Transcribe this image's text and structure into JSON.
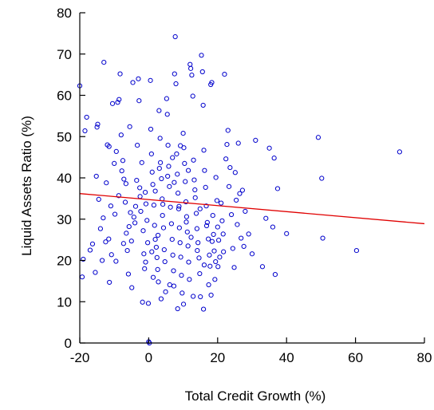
{
  "chart_data": {
    "type": "scatter",
    "title": "",
    "xlabel": "Total Credit Growth (%)",
    "ylabel": "Liquid Assets Ratio (%)",
    "xlim": [
      -20,
      80
    ],
    "ylim": [
      0,
      80
    ],
    "xticks": [
      "-20",
      "0",
      "20",
      "40",
      "60",
      "80"
    ],
    "yticks": [
      "0",
      "10",
      "20",
      "30",
      "40",
      "50",
      "60",
      "70",
      "80"
    ],
    "grid": false,
    "marker_color": "#0000cc",
    "fit_line_color": "#e00000",
    "fit_line": {
      "x": [
        -20,
        80
      ],
      "y": [
        36.2,
        28.9
      ]
    },
    "points": [
      [
        -20,
        62.3
      ],
      [
        -19,
        20.3
      ],
      [
        -19.3,
        16
      ],
      [
        -18.5,
        51.4
      ],
      [
        -18,
        54.7
      ],
      [
        -17,
        22.5
      ],
      [
        -16.3,
        24
      ],
      [
        -15.5,
        17.1
      ],
      [
        -15.2,
        40.4
      ],
      [
        -15,
        52.3
      ],
      [
        -14.8,
        53
      ],
      [
        -14.5,
        34.8
      ],
      [
        -14,
        27.7
      ],
      [
        -13.5,
        20
      ],
      [
        -13.2,
        30.3
      ],
      [
        -13,
        68
      ],
      [
        -12.5,
        24.5
      ],
      [
        -12.3,
        38.8
      ],
      [
        -12,
        48
      ],
      [
        -11.5,
        47.6
      ],
      [
        -11.6,
        25.2
      ],
      [
        -11,
        33.2
      ],
      [
        -11.4,
        14.7
      ],
      [
        -10.8,
        21.4
      ],
      [
        -10.5,
        58
      ],
      [
        -10,
        43.5
      ],
      [
        -9.5,
        19.8
      ],
      [
        -9.4,
        46.4
      ],
      [
        -9,
        58.3
      ],
      [
        -8.6,
        59
      ],
      [
        -8.3,
        65.2
      ],
      [
        -8,
        50.4
      ],
      [
        -7.8,
        41.7
      ],
      [
        -7.5,
        44.2
      ],
      [
        -7.2,
        39.7
      ],
      [
        -6.6,
        38.6
      ],
      [
        -6.8,
        34.1
      ],
      [
        -6.5,
        26.6
      ],
      [
        -6.2,
        22.4
      ],
      [
        -5.9,
        16.7
      ],
      [
        -5.5,
        52.4
      ],
      [
        -5.3,
        31.6
      ],
      [
        -5,
        24.7
      ],
      [
        -4.6,
        63.1
      ],
      [
        -4.3,
        30.5
      ],
      [
        -4,
        29.1
      ],
      [
        -3.5,
        39.4
      ],
      [
        -3.3,
        47.9
      ],
      [
        -3,
        64
      ],
      [
        -2.8,
        58.7
      ],
      [
        -2.5,
        35.5
      ],
      [
        -2.3,
        31.9
      ],
      [
        -2,
        43.7
      ],
      [
        -1.6,
        27.2
      ],
      [
        -1.4,
        21.6
      ],
      [
        -1.2,
        18
      ],
      [
        -1,
        36.5
      ],
      [
        -0.8,
        33.7
      ],
      [
        -0.5,
        29.7
      ],
      [
        -0.3,
        24.3
      ],
      [
        -0.1,
        9.6
      ],
      [
        0,
        0.3
      ],
      [
        0.2,
        0
      ],
      [
        0.5,
        63.6
      ],
      [
        0.6,
        51.8
      ],
      [
        0.8,
        45.8
      ],
      [
        1,
        41.4
      ],
      [
        1.2,
        38.4
      ],
      [
        1.5,
        33.4
      ],
      [
        1.7,
        28.5
      ],
      [
        1.9,
        25.1
      ],
      [
        2.2,
        23.2
      ],
      [
        2.4,
        20.7
      ],
      [
        2.6,
        17.8
      ],
      [
        2.8,
        14.8
      ],
      [
        3,
        56.3
      ],
      [
        3.3,
        49.6
      ],
      [
        3.4,
        43.7
      ],
      [
        3.7,
        39.8
      ],
      [
        3.9,
        34.9
      ],
      [
        4,
        30.9
      ],
      [
        4.3,
        27.9
      ],
      [
        4.5,
        22.6
      ],
      [
        4.7,
        19.7
      ],
      [
        4.9,
        12.4
      ],
      [
        5.2,
        59.2
      ],
      [
        5.4,
        55.4
      ],
      [
        5.6,
        47.9
      ],
      [
        5.8,
        42.8
      ],
      [
        6,
        37.9
      ],
      [
        6.3,
        32.9
      ],
      [
        6.6,
        28.9
      ],
      [
        6.8,
        25.1
      ],
      [
        7,
        21.3
      ],
      [
        7.2,
        17.5
      ],
      [
        7.3,
        13.8
      ],
      [
        7.5,
        65.2
      ],
      [
        7.7,
        74.2
      ],
      [
        7.9,
        62.8
      ],
      [
        8.1,
        45.8
      ],
      [
        8.3,
        40.9
      ],
      [
        8.5,
        36.3
      ],
      [
        8.7,
        32.5
      ],
      [
        8.9,
        27.9
      ],
      [
        9.1,
        24.3
      ],
      [
        9.3,
        20.8
      ],
      [
        9.5,
        16.4
      ],
      [
        9.7,
        12.1
      ],
      [
        10,
        50.8
      ],
      [
        10.2,
        47.3
      ],
      [
        10.4,
        43.5
      ],
      [
        10.6,
        39.1
      ],
      [
        10.8,
        34.2
      ],
      [
        11,
        30.6
      ],
      [
        11.2,
        26.9
      ],
      [
        11.4,
        23.5
      ],
      [
        11.6,
        19.6
      ],
      [
        11.8,
        15.4
      ],
      [
        12,
        67.5
      ],
      [
        12.2,
        66.5
      ],
      [
        12.5,
        64.9
      ],
      [
        12.8,
        59.8
      ],
      [
        13,
        44.3
      ],
      [
        13.2,
        39.5
      ],
      [
        13.5,
        35.2
      ],
      [
        13.8,
        31.4
      ],
      [
        14,
        27.7
      ],
      [
        14.3,
        24.3
      ],
      [
        14.6,
        20.6
      ],
      [
        14.8,
        16.8
      ],
      [
        15,
        11.2
      ],
      [
        15.3,
        69.7
      ],
      [
        15.6,
        65.7
      ],
      [
        15.8,
        57.6
      ],
      [
        16,
        46.7
      ],
      [
        16.2,
        41.8
      ],
      [
        16.5,
        37.7
      ],
      [
        16.7,
        33.2
      ],
      [
        17,
        29.2
      ],
      [
        17.3,
        25.2
      ],
      [
        17.6,
        21.3
      ],
      [
        17.8,
        18.6
      ],
      [
        18,
        62.6
      ],
      [
        18.3,
        63.1
      ],
      [
        18.6,
        30.9
      ],
      [
        18.8,
        26.3
      ],
      [
        19,
        22.3
      ],
      [
        19.2,
        15.4
      ],
      [
        19.5,
        40.1
      ],
      [
        19.8,
        34.5
      ],
      [
        20,
        28.1
      ],
      [
        20.3,
        24.9
      ],
      [
        20.6,
        20.8
      ],
      [
        21,
        33.9
      ],
      [
        21.3,
        29.6
      ],
      [
        21.6,
        26.4
      ],
      [
        22,
        65.1
      ],
      [
        22.4,
        44.6
      ],
      [
        22.7,
        48.1
      ],
      [
        23,
        51.5
      ],
      [
        23.3,
        37.9
      ],
      [
        23.6,
        42.5
      ],
      [
        24,
        31.1
      ],
      [
        24.4,
        22.9
      ],
      [
        24.8,
        18.3
      ],
      [
        25.1,
        41.3
      ],
      [
        25.4,
        34.6
      ],
      [
        25.7,
        28.7
      ],
      [
        26,
        48.4
      ],
      [
        26.4,
        36.2
      ],
      [
        26.8,
        25.4
      ],
      [
        27.2,
        37
      ],
      [
        27.6,
        23.4
      ],
      [
        28,
        31.9
      ],
      [
        29,
        26.4
      ],
      [
        30,
        21.6
      ],
      [
        31,
        49.1
      ],
      [
        33,
        18.5
      ],
      [
        34,
        30.2
      ],
      [
        35,
        47.2
      ],
      [
        36,
        28.1
      ],
      [
        36.4,
        44.8
      ],
      [
        36.7,
        16.6
      ],
      [
        37.4,
        37.4
      ],
      [
        40,
        26.5
      ],
      [
        49.2,
        49.8
      ],
      [
        50.2,
        39.9
      ],
      [
        50.5,
        25.4
      ],
      [
        60.3,
        22.4
      ],
      [
        72.8,
        46.3
      ],
      [
        -4.9,
        13.4
      ],
      [
        -0.9,
        19.6
      ],
      [
        1.3,
        15.9
      ],
      [
        3.6,
        10.7
      ],
      [
        6.1,
        14.1
      ],
      [
        8.4,
        8.3
      ],
      [
        10.1,
        9.4
      ],
      [
        12.9,
        11.3
      ],
      [
        15.9,
        8.2
      ],
      [
        18.1,
        11.6
      ],
      [
        -1.8,
        9.9
      ],
      [
        0.9,
        22.1
      ],
      [
        2.7,
        26.1
      ],
      [
        4.1,
        33.6
      ],
      [
        5.5,
        40.4
      ],
      [
        6.9,
        44.9
      ],
      [
        9.2,
        47.8
      ],
      [
        11.5,
        41.8
      ],
      [
        13.4,
        37.1
      ],
      [
        14.9,
        32.5
      ],
      [
        16.8,
        28.4
      ],
      [
        18.4,
        24.6
      ],
      [
        20.1,
        18.5
      ],
      [
        21.7,
        22.1
      ],
      [
        1.9,
        36.8
      ],
      [
        3.1,
        42.3
      ],
      [
        7.4,
        38.9
      ],
      [
        8.8,
        33.1
      ],
      [
        10.9,
        29.3
      ],
      [
        12.3,
        25.6
      ],
      [
        14.1,
        22.4
      ],
      [
        16.1,
        18.9
      ],
      [
        17.4,
        14.1
      ],
      [
        19.4,
        19.7
      ],
      [
        -2.6,
        37.6
      ],
      [
        -3.8,
        33.1
      ],
      [
        -5.7,
        28.2
      ],
      [
        -7.3,
        24.1
      ],
      [
        -8.7,
        35.7
      ],
      [
        -9.8,
        31.2
      ]
    ]
  }
}
